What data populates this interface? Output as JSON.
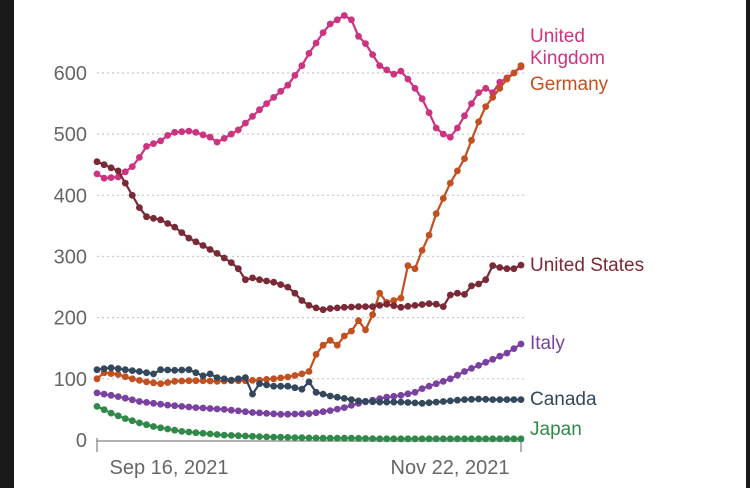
{
  "chart_data": {
    "type": "line",
    "title": "",
    "xlabel": "",
    "ylabel": "",
    "ylim": [
      0,
      700
    ],
    "yticks": [
      0,
      100,
      200,
      300,
      400,
      500,
      600
    ],
    "grid": "horizontal dotted",
    "n_points": 61,
    "x_tick_labels": [
      {
        "label": "Sep 16, 2021",
        "index": 0
      },
      {
        "label": "Nov 22, 2021",
        "index": 60
      }
    ],
    "series": [
      {
        "name": "United Kingdom",
        "label_lines": [
          "United",
          "Kingdom"
        ],
        "color": "#cc3380",
        "keypoints": [
          [
            0,
            435
          ],
          [
            1,
            428
          ],
          [
            3,
            430
          ],
          [
            5,
            447
          ],
          [
            6,
            462
          ],
          [
            7,
            480
          ],
          [
            9,
            489
          ],
          [
            10,
            498
          ],
          [
            11,
            503
          ],
          [
            13,
            505
          ],
          [
            14,
            503
          ],
          [
            16,
            495
          ],
          [
            17,
            487
          ],
          [
            18,
            493
          ],
          [
            20,
            507
          ],
          [
            21,
            518
          ],
          [
            23,
            540
          ],
          [
            25,
            560
          ],
          [
            27,
            580
          ],
          [
            29,
            612
          ],
          [
            30,
            632
          ],
          [
            32,
            666
          ],
          [
            33,
            680
          ],
          [
            35,
            694
          ],
          [
            36,
            687
          ],
          [
            37,
            660
          ],
          [
            38,
            648
          ],
          [
            39,
            630
          ],
          [
            40,
            612
          ],
          [
            42,
            598
          ],
          [
            43,
            603
          ],
          [
            44,
            590
          ],
          [
            45,
            575
          ],
          [
            46,
            558
          ],
          [
            47,
            535
          ],
          [
            48,
            510
          ],
          [
            49,
            500
          ],
          [
            50,
            495
          ],
          [
            51,
            510
          ],
          [
            52,
            530
          ],
          [
            53,
            550
          ],
          [
            54,
            568
          ],
          [
            55,
            575
          ],
          [
            56,
            568
          ],
          [
            57,
            585
          ],
          [
            58,
            592
          ],
          [
            59,
            600
          ],
          [
            60,
            610
          ]
        ]
      },
      {
        "name": "Germany",
        "label_lines": [
          "Germany"
        ],
        "color": "#c25020",
        "keypoints": [
          [
            0,
            100
          ],
          [
            1,
            110
          ],
          [
            3,
            107
          ],
          [
            5,
            100
          ],
          [
            7,
            95
          ],
          [
            9,
            92
          ],
          [
            11,
            96
          ],
          [
            13,
            97
          ],
          [
            15,
            97
          ],
          [
            17,
            96
          ],
          [
            19,
            97
          ],
          [
            21,
            97
          ],
          [
            23,
            98
          ],
          [
            25,
            100
          ],
          [
            27,
            103
          ],
          [
            29,
            108
          ],
          [
            30,
            112
          ],
          [
            31,
            140
          ],
          [
            32,
            155
          ],
          [
            33,
            163
          ],
          [
            34,
            155
          ],
          [
            35,
            170
          ],
          [
            36,
            178
          ],
          [
            37,
            195
          ],
          [
            38,
            180
          ],
          [
            39,
            205
          ],
          [
            40,
            240
          ],
          [
            41,
            225
          ],
          [
            42,
            228
          ],
          [
            43,
            232
          ],
          [
            44,
            285
          ],
          [
            45,
            280
          ],
          [
            46,
            310
          ],
          [
            47,
            335
          ],
          [
            48,
            370
          ],
          [
            49,
            395
          ],
          [
            50,
            420
          ],
          [
            51,
            440
          ],
          [
            52,
            460
          ],
          [
            53,
            490
          ],
          [
            54,
            520
          ],
          [
            55,
            545
          ],
          [
            56,
            560
          ],
          [
            57,
            575
          ],
          [
            58,
            590
          ],
          [
            59,
            600
          ],
          [
            60,
            612
          ]
        ]
      },
      {
        "name": "United States",
        "label_lines": [
          "United States"
        ],
        "color": "#7a2a36",
        "keypoints": [
          [
            0,
            455
          ],
          [
            1,
            450
          ],
          [
            2,
            445
          ],
          [
            3,
            440
          ],
          [
            4,
            420
          ],
          [
            5,
            400
          ],
          [
            6,
            380
          ],
          [
            7,
            365
          ],
          [
            9,
            360
          ],
          [
            11,
            348
          ],
          [
            13,
            330
          ],
          [
            15,
            318
          ],
          [
            17,
            305
          ],
          [
            19,
            290
          ],
          [
            20,
            280
          ],
          [
            21,
            262
          ],
          [
            22,
            265
          ],
          [
            23,
            262
          ],
          [
            25,
            258
          ],
          [
            27,
            250
          ],
          [
            28,
            240
          ],
          [
            29,
            228
          ],
          [
            30,
            220
          ],
          [
            31,
            216
          ],
          [
            32,
            213
          ],
          [
            33,
            215
          ],
          [
            35,
            217
          ],
          [
            37,
            218
          ],
          [
            39,
            218
          ],
          [
            41,
            222
          ],
          [
            43,
            217
          ],
          [
            45,
            220
          ],
          [
            47,
            223
          ],
          [
            48,
            222
          ],
          [
            49,
            218
          ],
          [
            50,
            237
          ],
          [
            51,
            240
          ],
          [
            52,
            238
          ],
          [
            53,
            252
          ],
          [
            54,
            255
          ],
          [
            55,
            262
          ],
          [
            56,
            285
          ],
          [
            57,
            282
          ],
          [
            58,
            280
          ],
          [
            59,
            280
          ],
          [
            60,
            286
          ]
        ]
      },
      {
        "name": "Italy",
        "label_lines": [
          "Italy"
        ],
        "color": "#7a42a0",
        "keypoints": [
          [
            0,
            77
          ],
          [
            3,
            71
          ],
          [
            6,
            63
          ],
          [
            10,
            57
          ],
          [
            14,
            53
          ],
          [
            18,
            50
          ],
          [
            22,
            45
          ],
          [
            26,
            42
          ],
          [
            30,
            43
          ],
          [
            33,
            48
          ],
          [
            35,
            53
          ],
          [
            37,
            60
          ],
          [
            39,
            65
          ],
          [
            41,
            70
          ],
          [
            43,
            73
          ],
          [
            45,
            78
          ],
          [
            46,
            84
          ],
          [
            48,
            92
          ],
          [
            50,
            100
          ],
          [
            52,
            112
          ],
          [
            54,
            122
          ],
          [
            56,
            132
          ],
          [
            58,
            142
          ],
          [
            60,
            157
          ]
        ]
      },
      {
        "name": "Canada",
        "label_lines": [
          "Canada"
        ],
        "color": "#33485c",
        "keypoints": [
          [
            0,
            115
          ],
          [
            2,
            118
          ],
          [
            4,
            115
          ],
          [
            6,
            112
          ],
          [
            8,
            108
          ],
          [
            9,
            115
          ],
          [
            11,
            114
          ],
          [
            13,
            115
          ],
          [
            15,
            105
          ],
          [
            16,
            108
          ],
          [
            17,
            102
          ],
          [
            19,
            98
          ],
          [
            21,
            102
          ],
          [
            22,
            75
          ],
          [
            23,
            92
          ],
          [
            25,
            88
          ],
          [
            27,
            88
          ],
          [
            29,
            83
          ],
          [
            30,
            95
          ],
          [
            31,
            78
          ],
          [
            33,
            72
          ],
          [
            35,
            68
          ],
          [
            37,
            64
          ],
          [
            40,
            62
          ],
          [
            43,
            62
          ],
          [
            46,
            60
          ],
          [
            48,
            62
          ],
          [
            50,
            64
          ],
          [
            52,
            66
          ],
          [
            54,
            67
          ],
          [
            56,
            66
          ],
          [
            58,
            66
          ],
          [
            60,
            66
          ]
        ]
      },
      {
        "name": "Japan",
        "label_lines": [
          "Japan"
        ],
        "color": "#2f8a4a",
        "keypoints": [
          [
            0,
            55
          ],
          [
            2,
            44
          ],
          [
            4,
            35
          ],
          [
            6,
            28
          ],
          [
            8,
            22
          ],
          [
            10,
            18
          ],
          [
            12,
            14
          ],
          [
            14,
            12
          ],
          [
            16,
            10
          ],
          [
            18,
            8
          ],
          [
            20,
            7
          ],
          [
            24,
            5
          ],
          [
            28,
            4
          ],
          [
            32,
            3
          ],
          [
            36,
            3
          ],
          [
            40,
            2
          ],
          [
            44,
            2
          ],
          [
            48,
            2
          ],
          [
            52,
            2
          ],
          [
            56,
            2
          ],
          [
            60,
            2
          ]
        ]
      }
    ]
  }
}
